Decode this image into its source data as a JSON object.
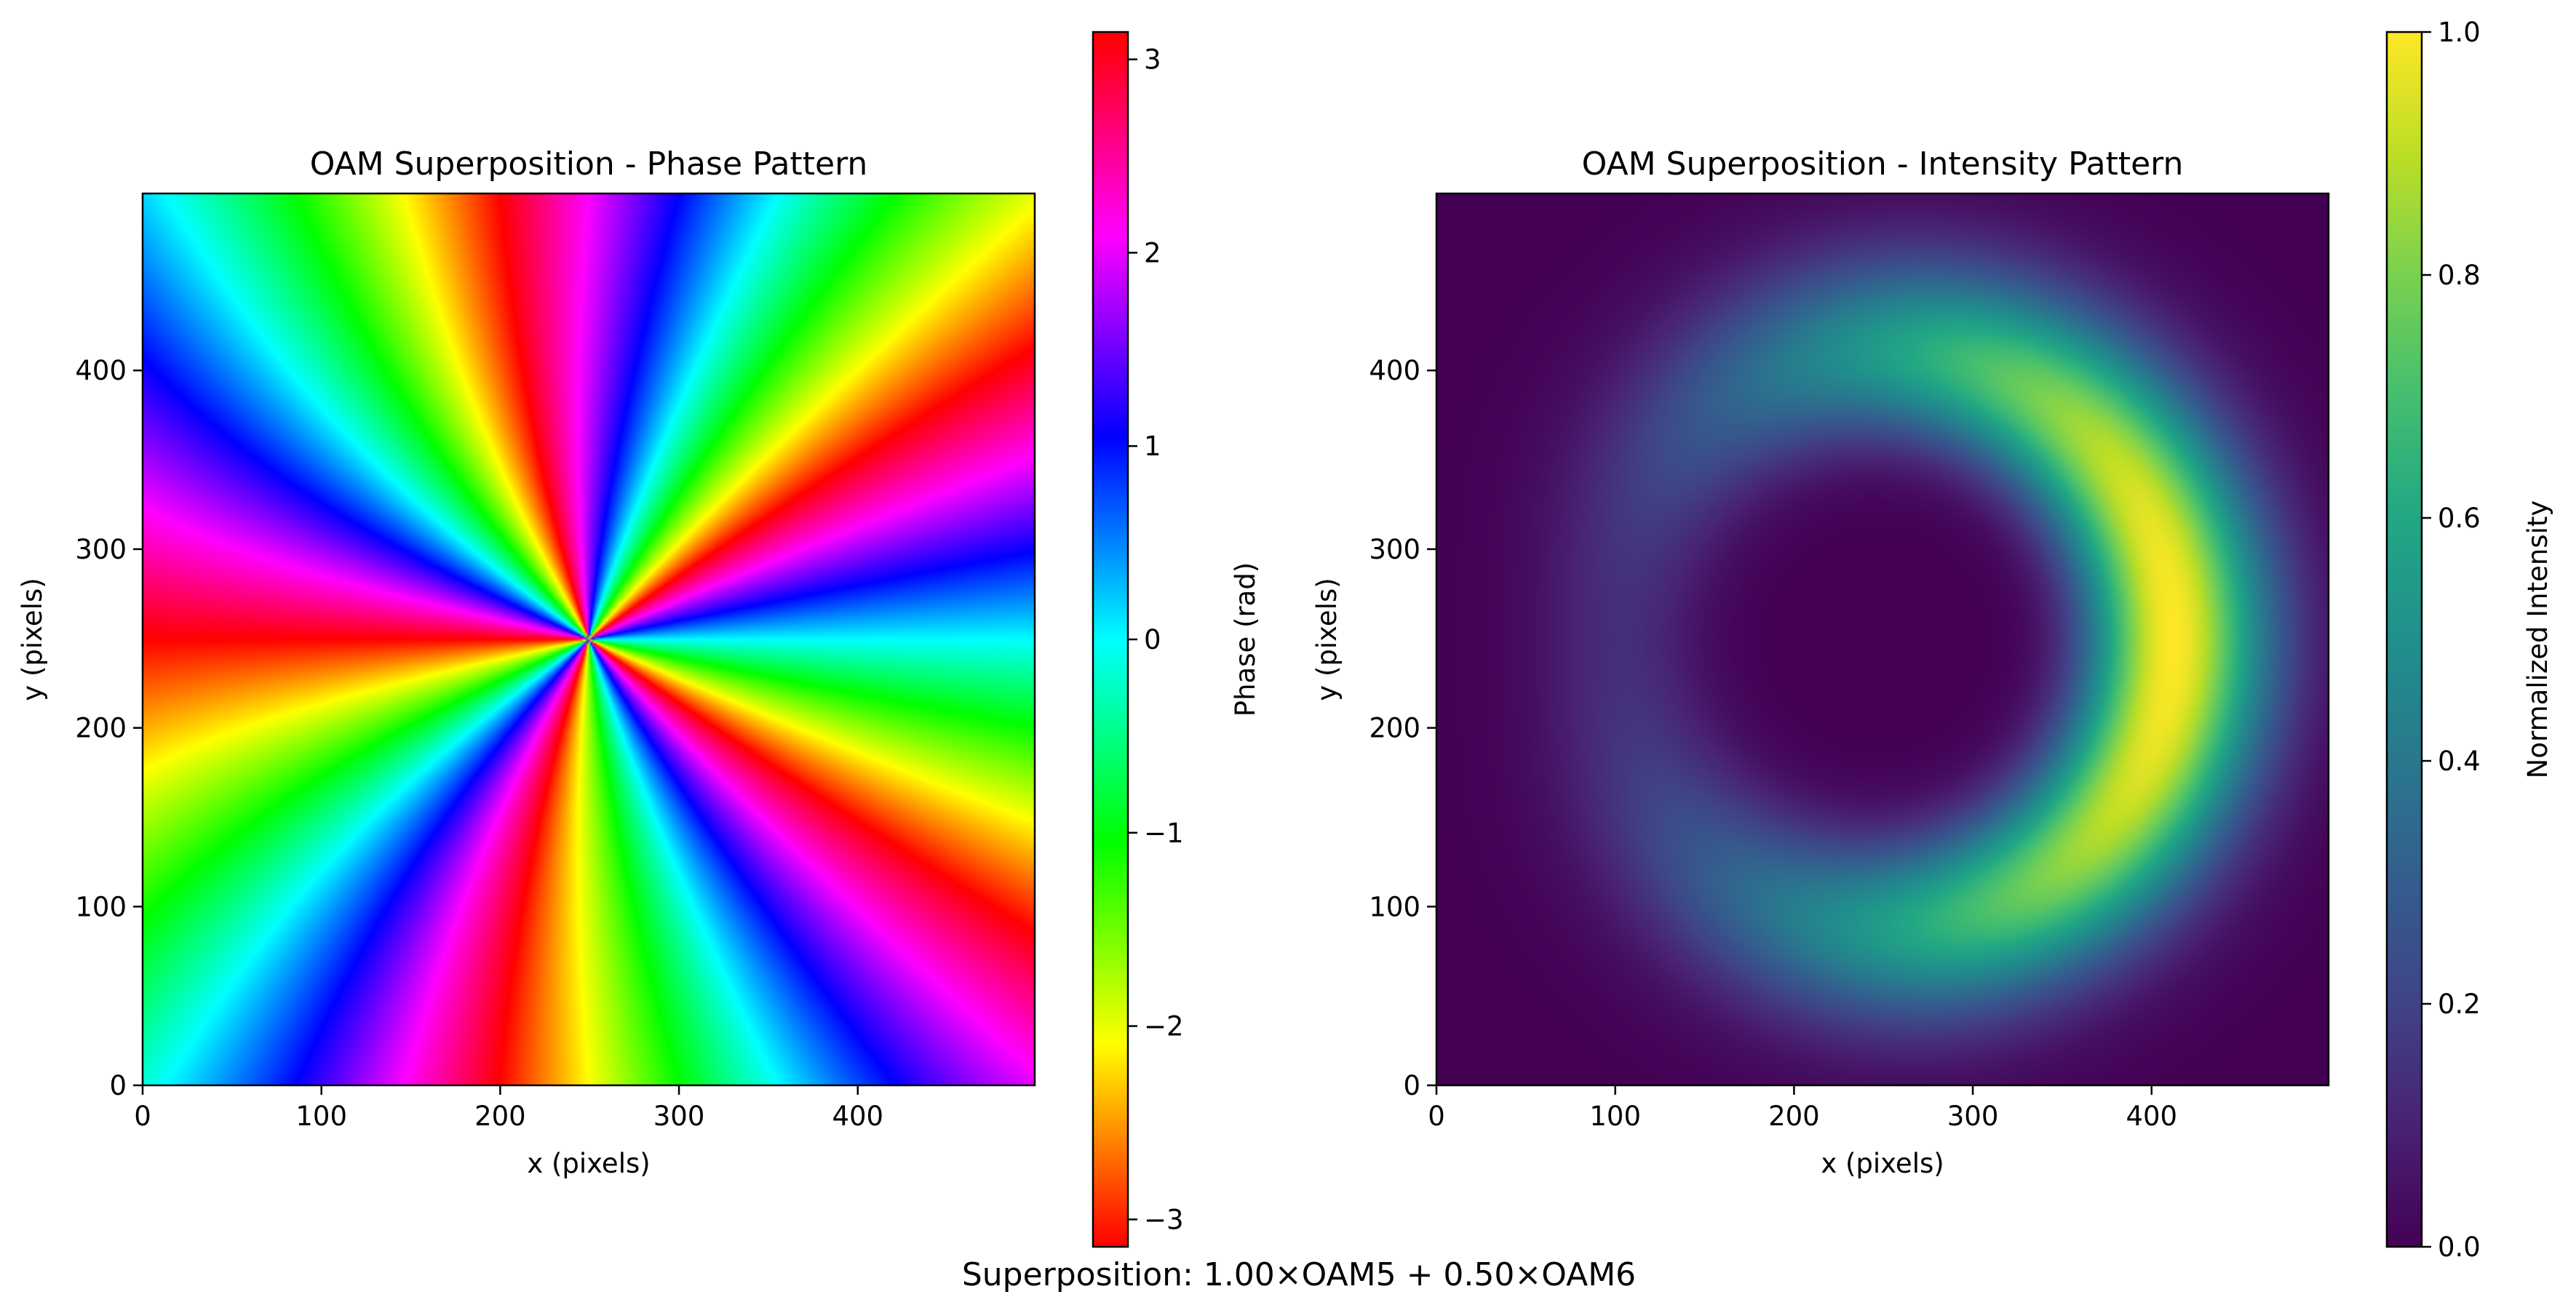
{
  "suptitle": "Superposition: 1.00×OAM5 + 0.50×OAM6",
  "chart_data": [
    {
      "type": "heatmap",
      "title": "OAM Superposition - Phase Pattern",
      "xlabel": "x (pixels)",
      "ylabel": "y (pixels)",
      "xlim": [
        0,
        499
      ],
      "ylim": [
        0,
        499
      ],
      "xticks": [
        0,
        100,
        200,
        300,
        400
      ],
      "yticks": [
        0,
        100,
        200,
        300,
        400
      ],
      "colormap": "hsv",
      "colorbar": {
        "label": "Phase (rad)",
        "range": [
          -3.1416,
          3.1416
        ],
        "ticks": [
          -3,
          -2,
          -1,
          0,
          1,
          2,
          3
        ],
        "tick_labels": [
          "−3",
          "−2",
          "−1",
          "0",
          "1",
          "2",
          "3"
        ]
      },
      "field": {
        "center": [
          249.5,
          249.5
        ],
        "modes": [
          {
            "l": 5,
            "amplitude": 1.0
          },
          {
            "l": 6,
            "amplitude": 0.5
          }
        ],
        "waist": 130,
        "quantity": "phase"
      }
    },
    {
      "type": "heatmap",
      "title": "OAM Superposition - Intensity Pattern",
      "xlabel": "x (pixels)",
      "ylabel": "y (pixels)",
      "xlim": [
        0,
        499
      ],
      "ylim": [
        0,
        499
      ],
      "xticks": [
        0,
        100,
        200,
        300,
        400
      ],
      "yticks": [
        0,
        100,
        200,
        300,
        400
      ],
      "colormap": "viridis",
      "colorbar": {
        "label": "Normalized Intensity",
        "range": [
          0,
          1
        ],
        "ticks": [
          0,
          0.2,
          0.4,
          0.6,
          0.8,
          1.0
        ],
        "tick_labels": [
          "0.0",
          "0.2",
          "0.4",
          "0.6",
          "0.8",
          "1.0"
        ]
      },
      "field": {
        "center": [
          249.5,
          249.5
        ],
        "modes": [
          {
            "l": 5,
            "amplitude": 1.0
          },
          {
            "l": 6,
            "amplitude": 0.5
          }
        ],
        "waist": 100,
        "quantity": "normalized intensity"
      }
    }
  ]
}
